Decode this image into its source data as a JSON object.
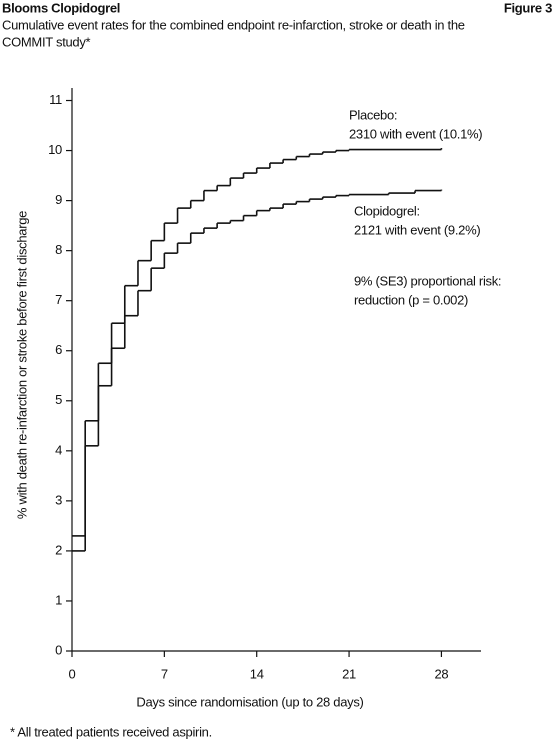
{
  "chart_data": {
    "type": "step",
    "header": "Blooms Clopidogrel",
    "figure_label": "Figure 3",
    "title": [
      "Cumulative event rates for the combined endpoint re-infarction, stroke or death in the",
      "COMMIT study*"
    ],
    "xlabel": "Days since randomisation (up to 28 days)",
    "ylabel": "% with death re-infarction or stroke before first discharge",
    "xlim": [
      0,
      31
    ],
    "ylim": [
      0,
      11.25
    ],
    "xticks": [
      0,
      7,
      14,
      21,
      28
    ],
    "yticks": [
      0,
      1,
      2,
      3,
      4,
      5,
      6,
      7,
      8,
      9,
      10,
      11
    ],
    "color": "#111111",
    "series": [
      {
        "name": "Placebo",
        "x": [
          0,
          1,
          2,
          3,
          4,
          5,
          6,
          7,
          8,
          9,
          10,
          11,
          12,
          13,
          14,
          15,
          16,
          17,
          18,
          19,
          20,
          21,
          28
        ],
        "values": [
          2.3,
          4.6,
          5.75,
          6.55,
          7.3,
          7.8,
          8.2,
          8.55,
          8.85,
          9.0,
          9.2,
          9.3,
          9.45,
          9.55,
          9.65,
          9.75,
          9.82,
          9.88,
          9.93,
          9.97,
          10.0,
          10.02,
          10.05
        ]
      },
      {
        "name": "Clopidogrel",
        "x": [
          0,
          1,
          2,
          3,
          4,
          5,
          6,
          7,
          8,
          9,
          10,
          11,
          12,
          13,
          14,
          15,
          16,
          17,
          18,
          19,
          20,
          21,
          24,
          26,
          28
        ],
        "values": [
          2.0,
          4.1,
          5.3,
          6.05,
          6.7,
          7.2,
          7.65,
          7.95,
          8.15,
          8.35,
          8.45,
          8.55,
          8.6,
          8.7,
          8.8,
          8.85,
          8.93,
          8.98,
          9.03,
          9.07,
          9.1,
          9.12,
          9.15,
          9.2,
          9.22
        ]
      }
    ],
    "annotations": [
      "Placebo:",
      "2310 with event (10.1%)",
      "Clopidogrel:",
      "2121 with event (9.2%)",
      "9% (SE3) proportional risk:",
      "reduction (p = 0.002)"
    ],
    "footnote": "* All treated patients received aspirin."
  }
}
